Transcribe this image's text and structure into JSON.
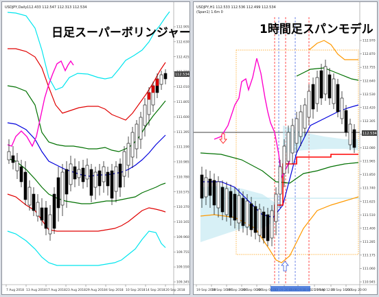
{
  "left_chart": {
    "title_bar": "USDJPY,Daily",
    "ohlc": "112.433 112.547 112.313 112.534",
    "overlay_label": "日足スーパーボリンジャー",
    "price_badge": "112.534",
    "price_ticks": [
      "112.905",
      "112.630",
      "112.425",
      "112.210",
      "112.010",
      "111.805",
      "111.600",
      "111.395",
      "111.190",
      "110.985",
      "110.780",
      "110.575",
      "110.370",
      "110.165",
      "109.960",
      "109.755",
      "109.550",
      "109.345"
    ],
    "date_ticks": [
      "7 Aug 2018",
      "13 Aug 2018",
      "17 Aug 2018",
      "23 Aug 2018",
      "29 Aug 2018",
      "4 Sep 2018",
      "10 Sep 2018",
      "14 Sep 2018",
      "20 Sep 2018"
    ]
  },
  "right_chart": {
    "title_bar": "USDJPY,H1 112.533 112.536 112.499 112.534",
    "subtitle": "(Span1) 1.6m 0",
    "overlay_label": "1時間足スパンモデル",
    "price_badge": "112.534",
    "price_ticks": [
      "112.970",
      "112.870",
      "112.755",
      "112.640",
      "112.530",
      "112.420",
      "112.305",
      "112.190",
      "112.080",
      "111.965",
      "111.850",
      "111.740",
      "111.625",
      "111.510",
      "111.400",
      "111.285",
      "111.175",
      "111.060",
      "110.945"
    ],
    "date_ticks": [
      "19 Sep 2018",
      "19 Sep 16:00",
      "19 Sep 20:00",
      "20 Sep 00:00",
      "20 Sep 04:00",
      "2018.09.20 09:00",
      "2018.09.21 02:00",
      "2018.09.21 09:00",
      "21 Sep 12:00",
      "21 Sep 16:00",
      "21 Sep 20:00"
    ]
  },
  "colors": {
    "bb_outer": "#00e5ee",
    "bb_2": "#e00000",
    "bb_1": "#007000",
    "bb_mid": "#0000dd",
    "chikou": "#ff00cc",
    "span_orange": "#ff9900",
    "span_red": "#ff0000"
  }
}
